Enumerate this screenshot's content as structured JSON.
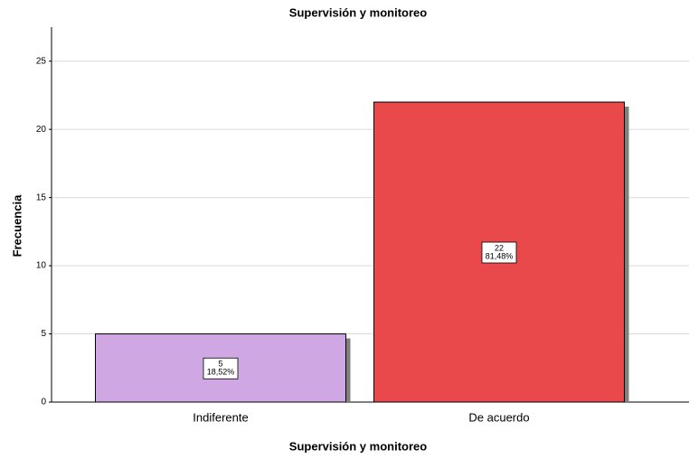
{
  "chart_data": {
    "type": "bar",
    "title": "Supervisión y monitoreo",
    "x_label": "Supervisión y monitoreo",
    "y_label": "Frecuencia",
    "categories": [
      "Indiferente",
      "De acuerdo"
    ],
    "values": [
      5,
      22
    ],
    "percent": {
      "values": [
        18.52,
        81.48
      ],
      "value_labels": [
        "18,52%",
        "81,48%"
      ]
    },
    "colors": [
      "#cfa7e3",
      "#e9494b"
    ],
    "ylim": [
      0,
      27.5
    ],
    "yticks": [
      0,
      5,
      10,
      15,
      20,
      25
    ],
    "grid": true
  }
}
